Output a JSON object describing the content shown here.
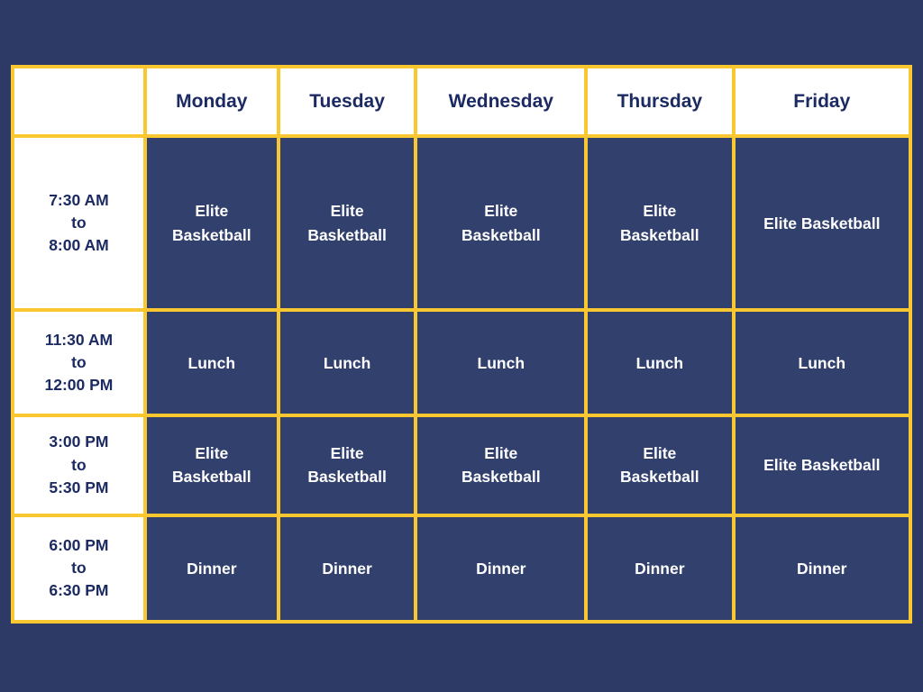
{
  "colors": {
    "background": "#2E3A66",
    "cell_fill": "#32406E",
    "border": "#F9C72F",
    "header_bg": "#FFFFFF",
    "header_text": "#1B2A63",
    "cell_text": "#FFFFFF"
  },
  "schedule": {
    "days": [
      "Monday",
      "Tuesday",
      "Wednesday",
      "Thursday",
      "Friday"
    ],
    "rows": [
      {
        "time": "7:30 AM\nto\n8:00 AM",
        "activities": [
          "Elite\nBasketball",
          "Elite\nBasketball",
          "Elite\nBasketball",
          "Elite\nBasketball",
          "Elite Basketball"
        ]
      },
      {
        "time": "11:30 AM\nto\n12:00 PM",
        "activities": [
          "Lunch",
          "Lunch",
          "Lunch",
          "Lunch",
          "Lunch"
        ]
      },
      {
        "time": "3:00 PM\nto\n5:30 PM",
        "activities": [
          "Elite\nBasketball",
          "Elite\nBasketball",
          "Elite\nBasketball",
          "Elite\nBasketball",
          "Elite Basketball"
        ]
      },
      {
        "time": "6:00 PM\nto\n6:30 PM",
        "activities": [
          "Dinner",
          "Dinner",
          "Dinner",
          "Dinner",
          "Dinner"
        ]
      }
    ]
  }
}
